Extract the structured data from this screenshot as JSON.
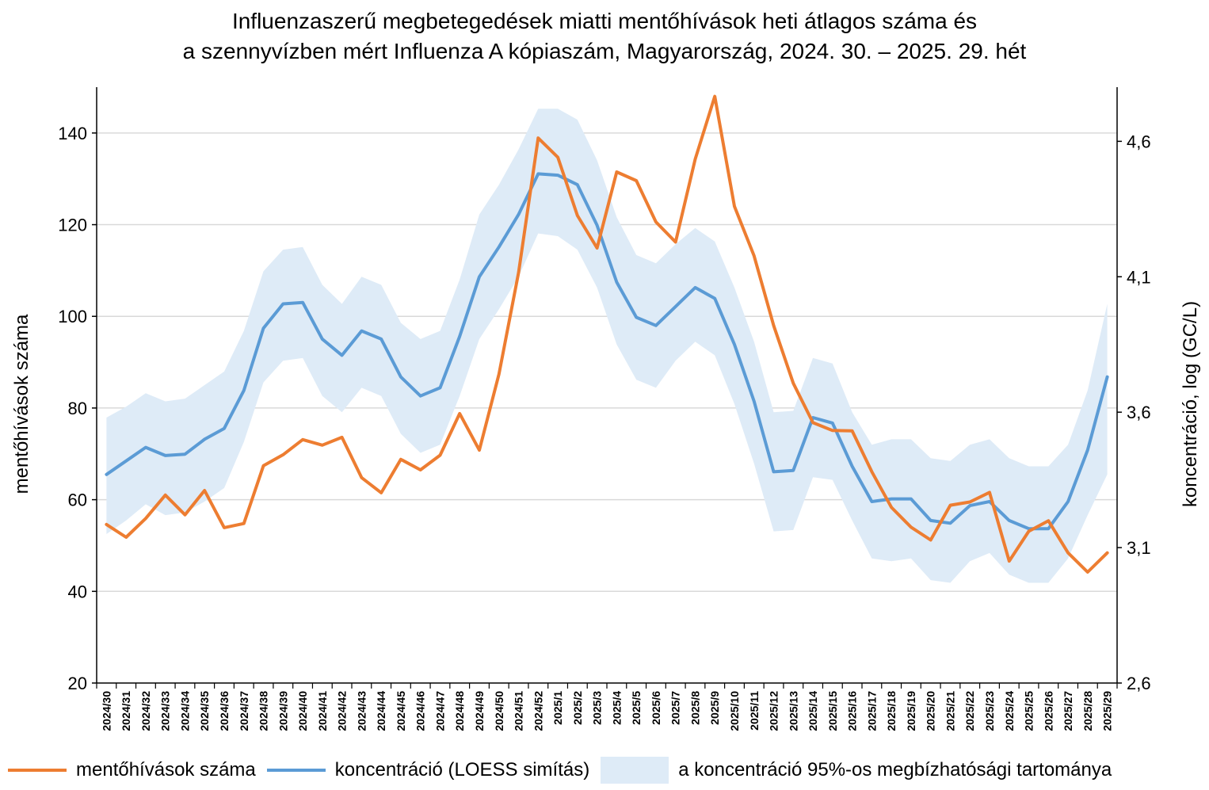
{
  "chart_data": {
    "type": "line",
    "title_lines": [
      "Influenzaszerű megbetegedések miatti mentőhívások heti átlagos száma és",
      "a szennyvízben mért Influenza A kópiaszám, Magyarország, 2024. 30. – 2025. 29. hét"
    ],
    "ylabel_left": "mentőhívások száma",
    "ylabel_right": "koncentráció, log (GC/L)",
    "ylim_left": [
      20,
      150
    ],
    "yticks_left": [
      20,
      40,
      60,
      80,
      100,
      120,
      140
    ],
    "ylim_right": [
      2.6,
      4.8
    ],
    "yticks_right": [
      2.6,
      3.1,
      3.6,
      4.1,
      4.6
    ],
    "yticks_right_labels": [
      "2,6",
      "3,1",
      "3,6",
      "4,1",
      "4,6"
    ],
    "grid": true,
    "legend_position": "bottom",
    "categories": [
      "2024/30",
      "2024/31",
      "2024/32",
      "2024/33",
      "2024/34",
      "2024/35",
      "2024/36",
      "2024/37",
      "2024/38",
      "2024/39",
      "2024/40",
      "2024/41",
      "2024/42",
      "2024/43",
      "2024/44",
      "2024/45",
      "2024/46",
      "2024/47",
      "2024/48",
      "2024/49",
      "2024/50",
      "2024/51",
      "2024/52",
      "2025/1",
      "2025/2",
      "2025/3",
      "2025/4",
      "2025/5",
      "2025/6",
      "2025/7",
      "2025/8",
      "2025/9",
      "2025/10",
      "2025/11",
      "2025/12",
      "2025/13",
      "2025/14",
      "2025/15",
      "2025/16",
      "2025/17",
      "2025/18",
      "2025/19",
      "2025/20",
      "2025/21",
      "2025/22",
      "2025/23",
      "2025/24",
      "2025/25",
      "2025/26",
      "2025/27",
      "2025/28",
      "2025/29"
    ],
    "series": [
      {
        "name": "mentőhívások száma",
        "axis": "left",
        "color": "#ED7D31",
        "values": [
          54.6,
          51.8,
          55.9,
          61.0,
          56.7,
          62.0,
          53.9,
          54.8,
          67.4,
          69.8,
          73.1,
          71.9,
          73.6,
          64.8,
          61.5,
          68.8,
          66.5,
          69.7,
          78.8,
          70.8,
          87.4,
          109.5,
          138.9,
          134.7,
          122.0,
          114.9,
          131.5,
          129.6,
          120.6,
          116.2,
          134.3,
          148.0,
          124.0,
          113.2,
          98.0,
          85.4,
          76.8,
          75.1,
          75.0,
          66.1,
          58.3,
          54.0,
          51.2,
          58.8,
          59.5,
          61.6,
          46.6,
          53.1,
          55.4,
          48.4,
          44.2,
          48.4
        ]
      },
      {
        "name": "koncentráció (LOESS simítás)",
        "axis": "right",
        "color": "#5B9BD5",
        "values": [
          3.37,
          3.42,
          3.47,
          3.44,
          3.445,
          3.5,
          3.54,
          3.68,
          3.91,
          4.0,
          4.005,
          3.87,
          3.81,
          3.9,
          3.87,
          3.73,
          3.66,
          3.69,
          3.88,
          4.1,
          4.21,
          4.33,
          4.48,
          4.475,
          4.44,
          4.29,
          4.08,
          3.95,
          3.92,
          3.99,
          4.06,
          4.02,
          3.85,
          3.64,
          3.38,
          3.385,
          3.58,
          3.56,
          3.4,
          3.27,
          3.28,
          3.28,
          3.2,
          3.19,
          3.255,
          3.27,
          3.2,
          3.17,
          3.17,
          3.27,
          3.46,
          3.73
        ]
      }
    ],
    "band": {
      "name": "a koncentráció 95%-os megbízhatósági tartománya",
      "axis": "right",
      "color": "#DEEBF7",
      "lower": [
        3.15,
        3.2,
        3.26,
        3.22,
        3.23,
        3.27,
        3.32,
        3.49,
        3.71,
        3.79,
        3.8,
        3.66,
        3.6,
        3.69,
        3.66,
        3.52,
        3.45,
        3.48,
        3.66,
        3.87,
        3.98,
        4.1,
        4.26,
        4.25,
        4.2,
        4.06,
        3.85,
        3.72,
        3.69,
        3.79,
        3.86,
        3.81,
        3.63,
        3.41,
        3.16,
        3.165,
        3.36,
        3.35,
        3.2,
        3.06,
        3.05,
        3.06,
        2.98,
        2.97,
        3.05,
        3.08,
        3.0,
        2.97,
        2.97,
        3.06,
        3.22,
        3.37
      ],
      "upper": [
        3.58,
        3.62,
        3.67,
        3.64,
        3.65,
        3.7,
        3.75,
        3.9,
        4.12,
        4.2,
        4.21,
        4.07,
        4.0,
        4.1,
        4.07,
        3.93,
        3.87,
        3.9,
        4.09,
        4.33,
        4.44,
        4.57,
        4.72,
        4.72,
        4.68,
        4.53,
        4.32,
        4.18,
        4.15,
        4.22,
        4.28,
        4.23,
        4.06,
        3.86,
        3.6,
        3.605,
        3.8,
        3.78,
        3.6,
        3.48,
        3.5,
        3.5,
        3.43,
        3.42,
        3.48,
        3.5,
        3.43,
        3.4,
        3.4,
        3.48,
        3.68,
        4.0
      ]
    }
  }
}
